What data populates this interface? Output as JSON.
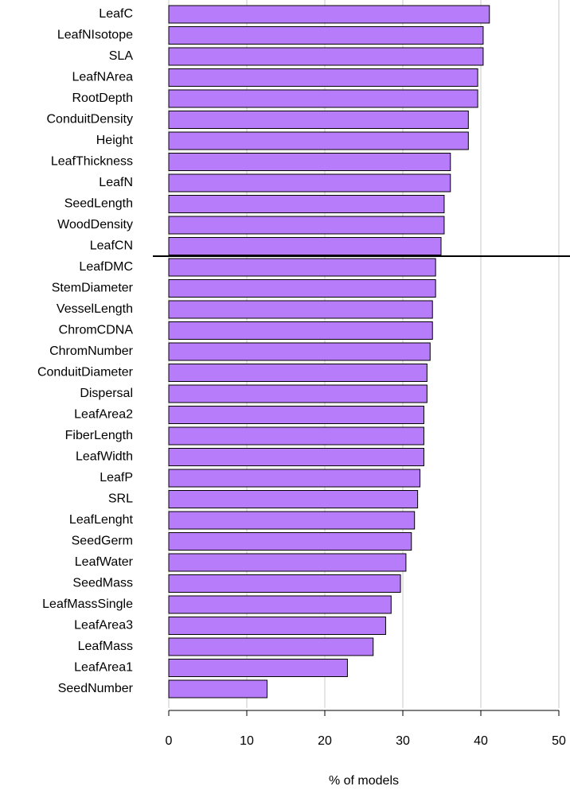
{
  "chart_data": {
    "type": "bar",
    "orientation": "horizontal",
    "categories": [
      "LeafC",
      "LeafNIsotope",
      "SLA",
      "LeafNArea",
      "RootDepth",
      "ConduitDensity",
      "Height",
      "LeafThickness",
      "LeafN",
      "SeedLength",
      "WoodDensity",
      "LeafCN",
      "LeafDMC",
      "StemDiameter",
      "VesselLength",
      "ChromCDNA",
      "ChromNumber",
      "ConduitDiameter",
      "Dispersal",
      "LeafArea2",
      "FiberLength",
      "LeafWidth",
      "LeafP",
      "SRL",
      "LeafLenght",
      "SeedGerm",
      "LeafWater",
      "SeedMass",
      "LeafMassSingle",
      "LeafArea3",
      "LeafMass",
      "LeafArea1",
      "SeedNumber"
    ],
    "values": [
      41.1,
      40.3,
      40.3,
      39.6,
      39.6,
      38.4,
      38.4,
      36.1,
      36.1,
      35.3,
      35.3,
      34.9,
      34.2,
      34.2,
      33.8,
      33.8,
      33.5,
      33.1,
      33.1,
      32.7,
      32.7,
      32.7,
      32.2,
      31.9,
      31.5,
      31.1,
      30.4,
      29.7,
      28.5,
      27.8,
      26.2,
      22.9,
      12.6
    ],
    "color": "#b77cf9",
    "xlabel": "% of models",
    "xlim": [
      0,
      50
    ],
    "xticks": [
      0,
      10,
      20,
      30,
      40,
      50
    ],
    "grid": true
  }
}
